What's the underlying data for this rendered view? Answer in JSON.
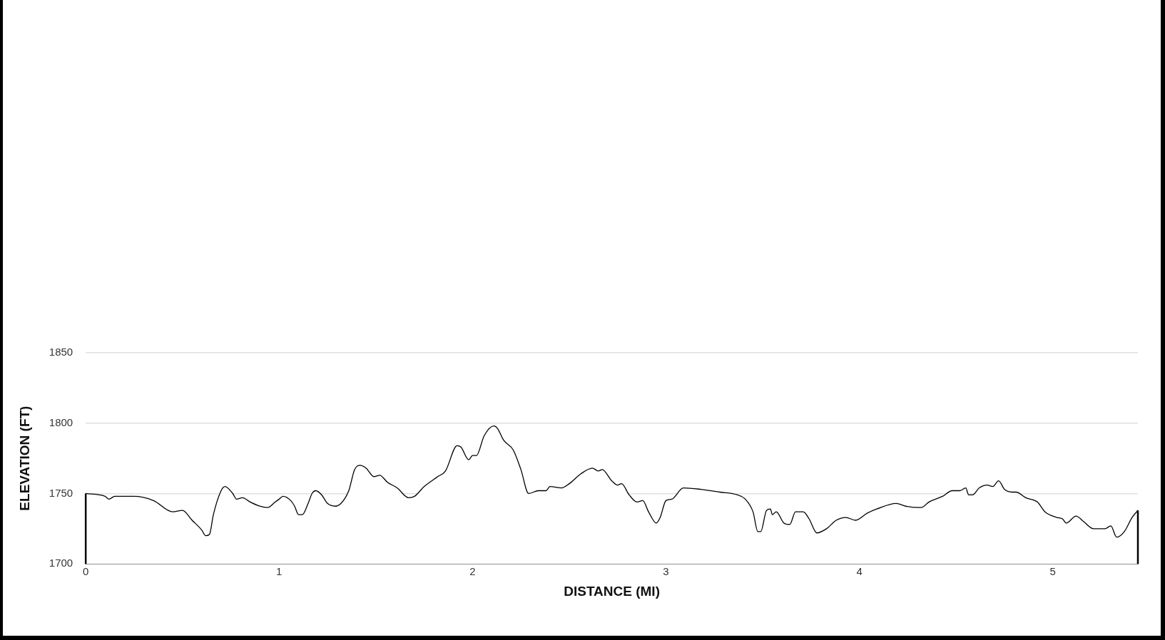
{
  "chart_data": {
    "type": "area",
    "xlabel": "DISTANCE (MI)",
    "ylabel": "ELEVATION (FT)",
    "xlim": [
      0,
      5.44
    ],
    "xticks": [
      0,
      1,
      2,
      3,
      4,
      5
    ],
    "ylim": [
      1700,
      1850
    ],
    "yticks": [
      1700,
      1750,
      1800,
      1850
    ],
    "grid": "y",
    "legend": false,
    "marker": "none",
    "line_style": "solid",
    "series": [
      {
        "color": "#000000",
        "x": [
          0,
          0.1,
          0.12,
          0.15,
          0.25,
          0.35,
          0.45,
          0.5,
          0.55,
          0.6,
          0.62,
          0.64,
          0.66,
          0.7,
          0.72,
          0.76,
          0.78,
          0.81,
          0.85,
          0.9,
          0.94,
          0.98,
          1.0,
          1.02,
          1.06,
          1.08,
          1.1,
          1.12,
          1.15,
          1.17,
          1.19,
          1.22,
          1.25,
          1.29,
          1.32,
          1.36,
          1.39,
          1.42,
          1.45,
          1.49,
          1.52,
          1.56,
          1.61,
          1.67,
          1.7,
          1.75,
          1.82,
          1.86,
          1.92,
          1.94,
          1.98,
          2.0,
          2.02,
          2.06,
          2.11,
          2.13,
          2.16,
          2.21,
          2.25,
          2.29,
          2.34,
          2.38,
          2.4,
          2.46,
          2.5,
          2.56,
          2.62,
          2.65,
          2.67,
          2.72,
          2.75,
          2.77,
          2.81,
          2.85,
          2.88,
          2.91,
          2.95,
          2.97,
          3.0,
          3.03,
          3.09,
          3.18,
          3.28,
          3.37,
          3.41,
          3.45,
          3.475,
          3.49,
          3.52,
          3.54,
          3.55,
          3.57,
          3.61,
          3.64,
          3.67,
          3.71,
          3.74,
          3.78,
          3.83,
          3.88,
          3.93,
          3.98,
          4.04,
          4.09,
          4.19,
          4.24,
          4.32,
          4.36,
          4.43,
          4.48,
          4.52,
          4.55,
          4.565,
          4.585,
          4.62,
          4.66,
          4.69,
          4.72,
          4.75,
          4.79,
          4.81,
          4.86,
          4.92,
          4.96,
          5.02,
          5.05,
          5.07,
          5.12,
          5.16,
          5.21,
          5.23,
          5.27,
          5.3,
          5.33,
          5.37,
          5.41,
          5.44
        ],
        "values": [
          1750,
          1748,
          1746,
          1748,
          1748,
          1745,
          1737,
          1738,
          1731,
          1724,
          1720,
          1721,
          1735,
          1752,
          1755,
          1750,
          1746,
          1747,
          1744,
          1741,
          1740,
          1744,
          1746,
          1748,
          1745,
          1741,
          1735,
          1735,
          1743,
          1750,
          1752,
          1749,
          1743,
          1741,
          1743,
          1752,
          1767,
          1770,
          1768,
          1762,
          1763,
          1758,
          1754,
          1747,
          1748,
          1755,
          1762,
          1766,
          1784,
          1783,
          1774,
          1777,
          1777,
          1791,
          1798,
          1796,
          1788,
          1781,
          1767,
          1750,
          1752,
          1752,
          1755,
          1754,
          1757,
          1764,
          1768,
          1766,
          1767,
          1759,
          1756,
          1757,
          1749,
          1744,
          1745,
          1737,
          1729,
          1733,
          1745,
          1746,
          1754,
          1753,
          1751,
          1749,
          1746,
          1737,
          1723,
          1723,
          1738,
          1739,
          1735,
          1737,
          1729,
          1728,
          1737,
          1737,
          1732,
          1722,
          1725,
          1731,
          1733,
          1731,
          1736,
          1739,
          1743,
          1741,
          1740,
          1744,
          1748,
          1752,
          1752,
          1754,
          1749,
          1749,
          1754,
          1756,
          1755,
          1759,
          1753,
          1751,
          1751,
          1747,
          1744,
          1737,
          1733,
          1732,
          1729,
          1734,
          1730,
          1725,
          1725,
          1725,
          1727,
          1719,
          1723,
          1733,
          1738
        ]
      }
    ]
  }
}
